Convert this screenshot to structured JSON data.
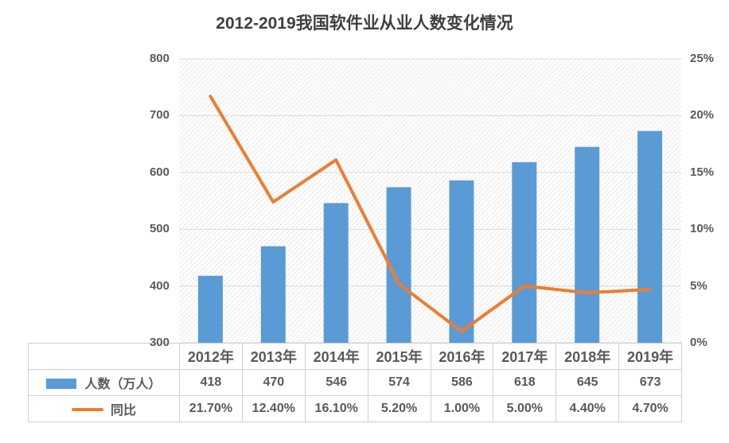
{
  "title": "2012-2019我国软件业从业人数变化情况",
  "chart_data": {
    "type": "combo-bar-line",
    "title": "2012-2019我国软件业从业人数变化情况",
    "categories": [
      "2012年",
      "2013年",
      "2014年",
      "2015年",
      "2016年",
      "2017年",
      "2018年",
      "2019年"
    ],
    "series": [
      {
        "name": "人数（万人）",
        "type": "bar",
        "axis": "left",
        "color": "#5B9BD5",
        "values": [
          418,
          470,
          546,
          574,
          586,
          618,
          645,
          673
        ],
        "labels": [
          "418",
          "470",
          "546",
          "574",
          "586",
          "618",
          "645",
          "673"
        ]
      },
      {
        "name": "同比",
        "type": "line",
        "axis": "right",
        "color": "#ED7D31",
        "values": [
          21.7,
          12.4,
          16.1,
          5.2,
          1.0,
          5.0,
          4.4,
          4.7
        ],
        "labels": [
          "21.70%",
          "12.40%",
          "16.10%",
          "5.20%",
          "1.00%",
          "5.00%",
          "4.40%",
          "4.70%"
        ]
      }
    ],
    "left_axis": {
      "min": 300,
      "max": 800,
      "step": 100,
      "tick_labels": [
        "300",
        "400",
        "500",
        "600",
        "700",
        "800"
      ]
    },
    "right_axis": {
      "min": 0,
      "max": 25,
      "step": 5,
      "tick_labels": [
        "0%",
        "5%",
        "10%",
        "15%",
        "20%",
        "25%"
      ]
    },
    "gridlines": true,
    "plot_background": "dotted-diagonal-hatch",
    "legend_position": "data-table-left"
  },
  "colors": {
    "bar": "#5B9BD5",
    "line": "#ED7D31",
    "gridline": "#D9D9D9",
    "hatch_dot": "#DCDCDC",
    "axis_text": "#595959",
    "title_text": "#3F3F3F",
    "table_border": "#D0D0D0",
    "table_text": "#595959",
    "background": "#FFFFFF"
  }
}
